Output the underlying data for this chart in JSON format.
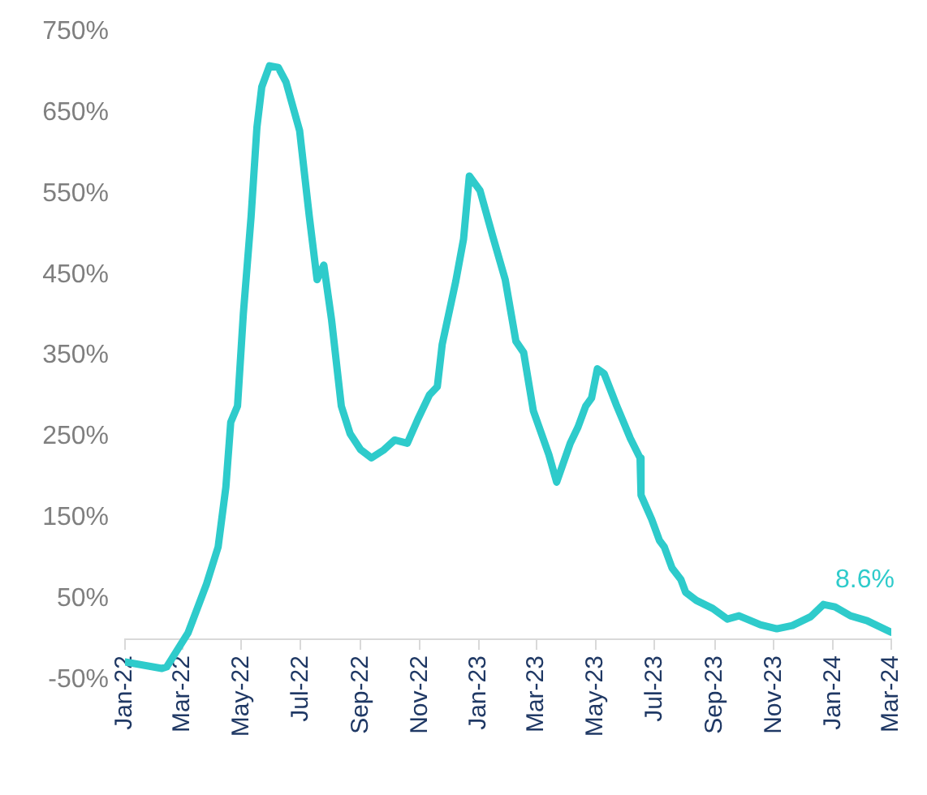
{
  "chart_data": {
    "type": "line",
    "x": [
      "2022-01-01",
      "2022-02-08",
      "2022-02-13",
      "2022-03-07",
      "2022-03-26",
      "2022-04-07",
      "2022-04-15",
      "2022-04-20",
      "2022-04-27",
      "2022-05-03",
      "2022-05-11",
      "2022-05-17",
      "2022-05-22",
      "2022-05-30",
      "2022-06-08",
      "2022-06-16",
      "2022-06-30",
      "2022-07-10",
      "2022-07-18",
      "2022-07-25",
      "2022-08-02",
      "2022-08-12",
      "2022-08-21",
      "2022-09-01",
      "2022-09-12",
      "2022-09-25",
      "2022-10-06",
      "2022-10-19",
      "2022-10-30",
      "2022-11-11",
      "2022-11-19",
      "2022-11-24",
      "2022-12-08",
      "2022-12-16",
      "2022-12-22",
      "2023-01-02",
      "2023-01-15",
      "2023-01-28",
      "2023-02-08",
      "2023-02-16",
      "2023-02-26",
      "2023-03-14",
      "2023-03-22",
      "2023-04-05",
      "2023-04-13",
      "2023-04-21",
      "2023-04-27",
      "2023-05-03",
      "2023-05-10",
      "2023-05-23",
      "2023-06-06",
      "2023-06-16",
      "2023-06-17",
      "2023-06-28",
      "2023-07-06",
      "2023-07-11",
      "2023-07-19",
      "2023-07-28",
      "2023-08-02",
      "2023-08-13",
      "2023-08-30",
      "2023-09-14",
      "2023-09-26",
      "2023-10-18",
      "2023-11-04",
      "2023-11-20",
      "2023-12-09",
      "2023-12-22",
      "2024-01-03",
      "2024-01-19",
      "2024-02-05",
      "2024-03-01"
    ],
    "series": [
      {
        "color": "#2ecbcb",
        "values": [
          -28,
          -36,
          -34,
          8,
          68,
          114,
          188,
          268,
          288,
          402,
          522,
          632,
          682,
          708,
          706,
          688,
          628,
          522,
          444,
          462,
          394,
          288,
          254,
          234,
          224,
          234,
          246,
          242,
          272,
          302,
          312,
          364,
          442,
          494,
          572,
          554,
          498,
          444,
          368,
          354,
          282,
          228,
          194,
          242,
          262,
          288,
          298,
          334,
          328,
          288,
          248,
          224,
          178,
          148,
          122,
          114,
          88,
          74,
          58,
          48,
          38,
          25,
          29,
          18,
          13,
          17,
          28,
          43,
          40,
          29,
          23,
          8.6
        ]
      }
    ],
    "xlim": [
      "2022-01",
      "2024-03"
    ],
    "xticks": [
      {
        "value": "2022-01",
        "label": "Jan-22"
      },
      {
        "value": "2022-03",
        "label": "Mar-22"
      },
      {
        "value": "2022-05",
        "label": "May-22"
      },
      {
        "value": "2022-07",
        "label": "Jul-22"
      },
      {
        "value": "2022-09",
        "label": "Sep-22"
      },
      {
        "value": "2022-11",
        "label": "Nov-22"
      },
      {
        "value": "2023-01",
        "label": "Jan-23"
      },
      {
        "value": "2023-03",
        "label": "Mar-23"
      },
      {
        "value": "2023-05",
        "label": "May-23"
      },
      {
        "value": "2023-07",
        "label": "Jul-23"
      },
      {
        "value": "2023-09",
        "label": "Sep-23"
      },
      {
        "value": "2023-11",
        "label": "Nov-23"
      },
      {
        "value": "2024-01",
        "label": "Jan-24"
      },
      {
        "value": "2024-03",
        "label": "Mar-24"
      }
    ],
    "ylim": [
      -50,
      750
    ],
    "yticks": [
      {
        "value": -50,
        "label": "-50%"
      },
      {
        "value": 50,
        "label": "50%"
      },
      {
        "value": 150,
        "label": "150%"
      },
      {
        "value": 250,
        "label": "250%"
      },
      {
        "value": 350,
        "label": "350%"
      },
      {
        "value": 450,
        "label": "450%"
      },
      {
        "value": 550,
        "label": "550%"
      },
      {
        "value": 650,
        "label": "650%"
      },
      {
        "value": 750,
        "label": "750%"
      }
    ],
    "marker": "none",
    "annotations": [
      {
        "text": "8.6%",
        "x": "2024-03-01",
        "y": 8.6
      }
    ]
  }
}
